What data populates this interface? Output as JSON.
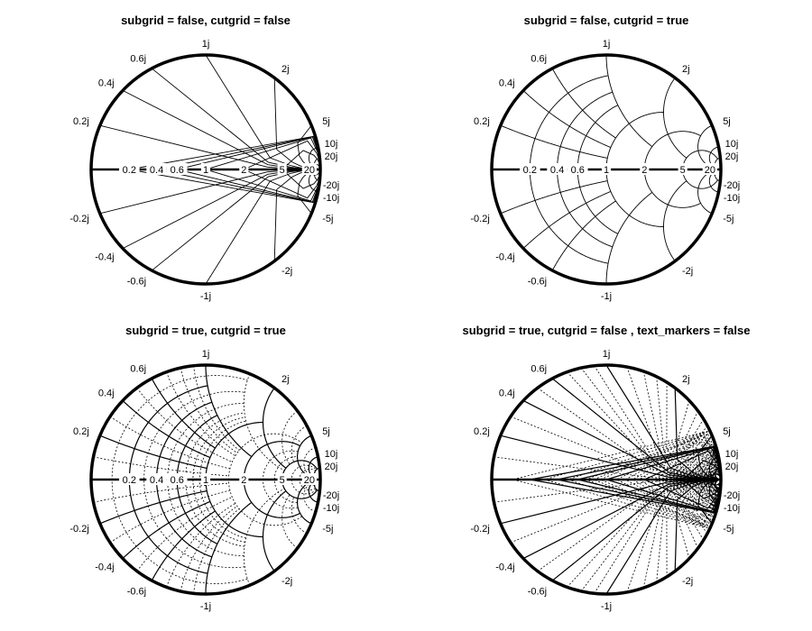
{
  "chart_data": [
    {
      "type": "smith",
      "title": "subgrid = false, cutgrid = false",
      "subgrid": false,
      "cutgrid": false,
      "text_markers": true,
      "real_ticks": [
        0.2,
        0.4,
        0.6,
        1,
        2,
        5,
        20
      ],
      "real_tick_labels": [
        "0.2",
        "0.4",
        "0.6",
        "1",
        "2",
        "5",
        "20"
      ],
      "imag_ticks": [
        0.2,
        0.4,
        0.6,
        1,
        2,
        5,
        10,
        20,
        -0.2,
        -0.4,
        -0.6,
        -1,
        -2,
        -5,
        -10,
        -20
      ],
      "imag_tick_labels": [
        "0.2j",
        "0.4j",
        "0.6j",
        "1j",
        "2j",
        "5j",
        "10j",
        "20j",
        "-0.2j",
        "-0.4j",
        "-0.6j",
        "-1j",
        "-2j",
        "-5j",
        "-10j",
        "-20j"
      ]
    },
    {
      "type": "smith",
      "title": "subgrid = false, cutgrid = true",
      "subgrid": false,
      "cutgrid": true,
      "text_markers": true,
      "real_ticks": [
        0.2,
        0.4,
        0.6,
        1,
        2,
        5,
        20
      ],
      "real_tick_labels": [
        "0.2",
        "0.4",
        "0.6",
        "1",
        "2",
        "5",
        "20"
      ],
      "imag_ticks": [
        0.2,
        0.4,
        0.6,
        1,
        2,
        5,
        10,
        20,
        -0.2,
        -0.4,
        -0.6,
        -1,
        -2,
        -5,
        -10,
        -20
      ],
      "imag_tick_labels": [
        "0.2j",
        "0.4j",
        "0.6j",
        "1j",
        "2j",
        "5j",
        "10j",
        "20j",
        "-0.2j",
        "-0.4j",
        "-0.6j",
        "-1j",
        "-2j",
        "-5j",
        "-10j",
        "-20j"
      ]
    },
    {
      "type": "smith",
      "title": "subgrid = true, cutgrid = true",
      "subgrid": true,
      "cutgrid": true,
      "text_markers": true,
      "real_ticks": [
        0.2,
        0.4,
        0.6,
        1,
        2,
        5,
        20
      ],
      "real_tick_labels": [
        "0.2",
        "0.4",
        "0.6",
        "1",
        "2",
        "5",
        "20"
      ],
      "imag_ticks": [
        0.2,
        0.4,
        0.6,
        1,
        2,
        5,
        10,
        20,
        -0.2,
        -0.4,
        -0.6,
        -1,
        -2,
        -5,
        -10,
        -20
      ],
      "imag_tick_labels": [
        "0.2j",
        "0.4j",
        "0.6j",
        "1j",
        "2j",
        "5j",
        "10j",
        "20j",
        "-0.2j",
        "-0.4j",
        "-0.6j",
        "-1j",
        "-2j",
        "-5j",
        "-10j",
        "-20j"
      ]
    },
    {
      "type": "smith",
      "title": "subgrid = true, cutgrid = false , text_markers = false",
      "subgrid": true,
      "cutgrid": false,
      "text_markers": false,
      "real_ticks": [
        0.2,
        0.4,
        0.6,
        1,
        2,
        5,
        20
      ],
      "real_tick_labels": [],
      "imag_ticks": [
        0.2,
        0.4,
        0.6,
        1,
        2,
        5,
        10,
        20,
        -0.2,
        -0.4,
        -0.6,
        -1,
        -2,
        -5,
        -10,
        -20
      ],
      "imag_tick_labels": [
        "0.2j",
        "0.4j",
        "0.6j",
        "1j",
        "2j",
        "5j",
        "10j",
        "20j",
        "-0.2j",
        "-0.4j",
        "-0.6j",
        "-1j",
        "-2j",
        "-5j",
        "-10j",
        "-20j"
      ]
    }
  ],
  "colors": {
    "grid": "#000000",
    "background": "#ffffff",
    "subgrid": "#000000"
  }
}
